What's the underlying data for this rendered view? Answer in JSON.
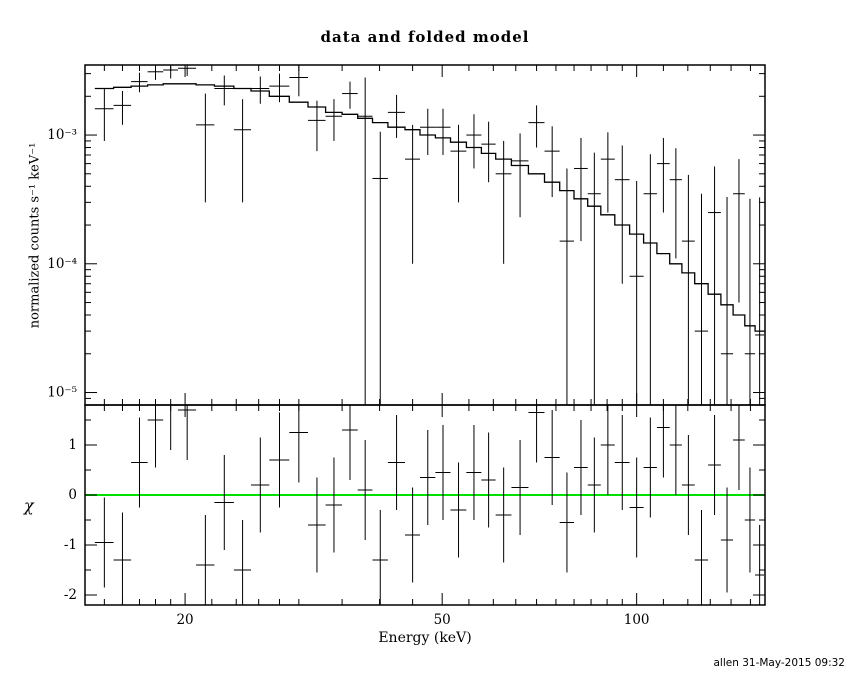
{
  "chart_data": {
    "type": "scatter",
    "title": "data and folded model",
    "xlabel": "Energy (keV)",
    "ylabel_top": "normalized counts s⁻¹ keV⁻¹",
    "ylabel_bottom": "χ",
    "timestamp": "allen 31-May-2015 09:32",
    "x_scale": "log",
    "xlim": [
      14,
      158
    ],
    "xticks": [
      {
        "v": 20,
        "label": "20"
      },
      {
        "v": 50,
        "label": "50"
      },
      {
        "v": 100,
        "label": "100"
      }
    ],
    "xticks_minor": [
      15,
      16,
      17,
      18,
      19,
      22,
      24,
      26,
      28,
      30,
      35,
      40,
      45,
      55,
      60,
      65,
      70,
      75,
      80,
      85,
      90,
      95,
      110,
      120,
      130,
      140,
      150
    ],
    "top_panel": {
      "y_scale": "log",
      "ylim": [
        8e-06,
        0.0035
      ],
      "yticks": [
        {
          "v": 0.001,
          "label": "10⁻³"
        },
        {
          "v": 0.0001,
          "label": "10⁻⁴"
        },
        {
          "v": 1e-05,
          "label": "10⁻⁵"
        }
      ]
    },
    "bottom_panel": {
      "ylim": [
        -2.2,
        1.8
      ],
      "yticks": [
        {
          "v": 1,
          "label": "1"
        },
        {
          "v": 0,
          "label": "0"
        },
        {
          "v": -1,
          "label": "-1"
        },
        {
          "v": -2,
          "label": "-2"
        }
      ],
      "yticks_minor": [
        -1.5,
        -0.5,
        0.5,
        1.5
      ],
      "zero_line_value": 0
    },
    "colors": {
      "data": "#000000",
      "model": "#000000",
      "zero_line": "#00e000",
      "frame": "#000000"
    },
    "bin_fields": [
      "energy_center",
      "energy_halfwidth",
      "model",
      "data",
      "data_err",
      "chi",
      "chi_err"
    ],
    "bins": [
      [
        15.0,
        0.5,
        0.0023,
        0.0016,
        0.0007,
        -0.95,
        0.9
      ],
      [
        16.0,
        0.5,
        0.00235,
        0.0017,
        0.0005,
        -1.3,
        0.95
      ],
      [
        17.0,
        0.5,
        0.0024,
        0.0026,
        0.00045,
        0.65,
        0.9
      ],
      [
        18.0,
        0.5,
        0.00245,
        0.0031,
        0.00042,
        1.5,
        0.95
      ],
      [
        19.0,
        0.5,
        0.0025,
        0.0032,
        0.00045,
        1.9,
        1.0
      ],
      [
        20.15,
        0.65,
        0.0025,
        0.0033,
        0.00042,
        1.7,
        1.0
      ],
      [
        21.5,
        0.7,
        0.00245,
        0.0012,
        0.0009,
        -1.4,
        1.0
      ],
      [
        23.0,
        0.8,
        0.0024,
        0.0023,
        0.0006,
        -0.15,
        0.95
      ],
      [
        24.55,
        0.75,
        0.0023,
        0.0011,
        0.0008,
        -1.5,
        1.0
      ],
      [
        26.15,
        0.85,
        0.0022,
        0.0023,
        0.00055,
        0.2,
        0.95
      ],
      [
        28.0,
        1.0,
        0.002,
        0.0024,
        0.0006,
        0.7,
        0.95
      ],
      [
        30.0,
        1.0,
        0.0018,
        0.0028,
        0.0008,
        1.25,
        1.0
      ],
      [
        32.0,
        1.0,
        0.00165,
        0.0013,
        0.00055,
        -0.6,
        0.95
      ],
      [
        34.0,
        1.0,
        0.0015,
        0.0014,
        0.0005,
        -0.2,
        0.95
      ],
      [
        36.0,
        1.0,
        0.00145,
        0.0021,
        0.0005,
        1.3,
        1.0
      ],
      [
        38.0,
        1.0,
        0.00135,
        0.0014,
        0.0014,
        0.1,
        1.0
      ],
      [
        40.1,
        1.1,
        0.00125,
        0.00046,
        0.0006,
        -1.3,
        1.0
      ],
      [
        42.5,
        1.3,
        0.00115,
        0.0015,
        0.00055,
        0.65,
        0.95
      ],
      [
        45.0,
        1.2,
        0.0011,
        0.00065,
        0.00055,
        -0.8,
        0.95
      ],
      [
        47.5,
        1.3,
        0.001,
        0.00115,
        0.00045,
        0.35,
        0.95
      ],
      [
        50.15,
        1.35,
        0.00095,
        0.00115,
        0.00045,
        0.45,
        0.95
      ],
      [
        53.0,
        1.5,
        0.00088,
        0.00075,
        0.00045,
        -0.3,
        0.95
      ],
      [
        56.0,
        1.5,
        0.0008,
        0.001,
        0.00045,
        0.45,
        0.95
      ],
      [
        59.0,
        1.5,
        0.00072,
        0.00085,
        0.00042,
        0.3,
        0.95
      ],
      [
        62.25,
        1.75,
        0.00065,
        0.0005,
        0.0004,
        -0.4,
        0.95
      ],
      [
        66.0,
        2.0,
        0.00058,
        0.00063,
        0.0004,
        0.15,
        0.95
      ],
      [
        70.0,
        2.0,
        0.0005,
        0.00125,
        0.00045,
        1.65,
        1.0
      ],
      [
        74.0,
        2.0,
        0.00043,
        0.00075,
        0.00042,
        0.75,
        0.95
      ],
      [
        78.0,
        2.0,
        0.00037,
        0.00015,
        0.0004,
        -0.55,
        1.0
      ],
      [
        82.0,
        2.0,
        0.00032,
        0.00055,
        0.0004,
        0.55,
        0.95
      ],
      [
        86.0,
        2.0,
        0.00028,
        0.00035,
        0.00038,
        0.2,
        0.95
      ],
      [
        90.25,
        2.25,
        0.00024,
        0.00065,
        0.0004,
        1.0,
        1.0
      ],
      [
        95.0,
        2.5,
        0.0002,
        0.00045,
        0.00038,
        0.65,
        0.95
      ],
      [
        100.0,
        2.5,
        0.00017,
        8e-05,
        0.00036,
        -0.25,
        1.0
      ],
      [
        105.0,
        2.5,
        0.000145,
        0.00035,
        0.00036,
        0.55,
        1.0
      ],
      [
        110.0,
        2.5,
        0.00012,
        0.0006,
        0.00035,
        1.35,
        1.0
      ],
      [
        115.0,
        2.5,
        0.0001,
        0.00045,
        0.00034,
        1.0,
        1.0
      ],
      [
        120.25,
        2.75,
        8.5e-05,
        0.00015,
        0.00034,
        0.2,
        1.0
      ],
      [
        126.0,
        3.0,
        7e-05,
        3e-05,
        0.00032,
        -1.3,
        1.0
      ],
      [
        132.0,
        3.0,
        5.8e-05,
        0.00025,
        0.00032,
        0.6,
        1.0
      ],
      [
        138.0,
        3.0,
        4.8e-05,
        2e-05,
        0.00031,
        -0.9,
        1.05
      ],
      [
        144.0,
        3.0,
        4e-05,
        0.00035,
        0.0003,
        1.1,
        1.0
      ],
      [
        149.75,
        2.75,
        3.3e-05,
        2e-05,
        0.0003,
        -0.5,
        1.05
      ],
      [
        155.0,
        2.5,
        3e-05,
        2.8e-05,
        0.0003,
        -1.6,
        1.0
      ]
    ]
  }
}
